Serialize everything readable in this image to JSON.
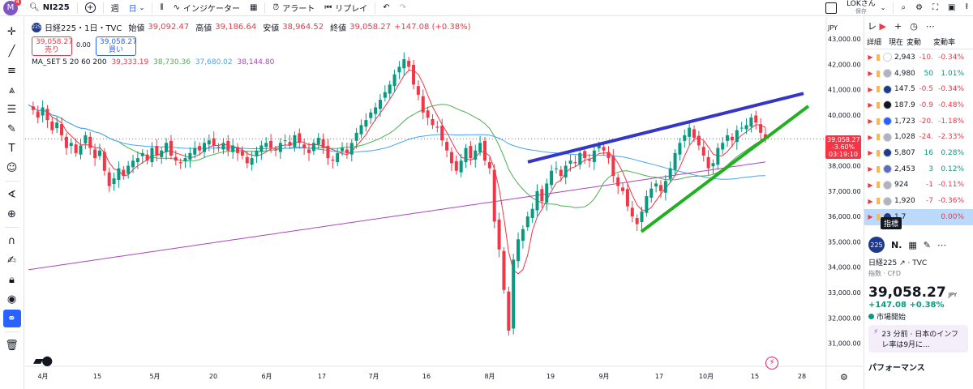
{
  "topbar": {
    "avatar_letter": "M",
    "avatar_badge": "4",
    "symbol": "NI225",
    "timeframe": "週",
    "timeframe_active": "日",
    "indicators_label": "インジケーター",
    "alert_label": "アラート",
    "replay_label": "リプレイ",
    "user_name": "LOKさん",
    "save_label": "保存"
  },
  "legend": {
    "symbol_badge": "225",
    "title": "日経225・1日・TVC",
    "open_label": "始値",
    "open": "39,092.47",
    "high_label": "高値",
    "high": "39,186.64",
    "low_label": "安値",
    "low": "38,964.52",
    "close_label": "終値",
    "close": "39,058.27",
    "change": "+147.08 (+0.38%)",
    "sell_price": "39,058.27",
    "sell_label": "売り",
    "buy_price": "39,058.27",
    "buy_label": "買い",
    "spread": "0.00",
    "ma_label": "MA_SET 5 20 60 200",
    "ma_values": [
      "39,333.19",
      "38,730.36",
      "37,680.02",
      "38,144.80"
    ],
    "ma_colors": [
      "#f23645",
      "#4caf50",
      "#42a5f5",
      "#ab47bc"
    ]
  },
  "chart_data": {
    "type": "candlestick",
    "currency": "JPY",
    "yaxis_ticks": [
      "43,000.00",
      "42,000.00",
      "41,000.00",
      "40,000.00",
      "39,000.00",
      "38,000.00",
      "37,000.00",
      "36,000.00",
      "35,000.00",
      "34,000.00",
      "33,000.00",
      "32,000.00",
      "31,000.00"
    ],
    "xaxis_ticks": [
      "4月",
      "15",
      "5月",
      "20",
      "6月",
      "17",
      "7月",
      "16",
      "8月",
      "19",
      "9月",
      "17",
      "10月",
      "15",
      "28"
    ],
    "last_price_label": "39,058.27",
    "last_change_label": "-3.60%",
    "countdown_label": "03:19:10",
    "colors": {
      "up": "#089981",
      "down": "#f23645",
      "trend_upper": "#3535c8",
      "trend_lower": "#22b022"
    }
  },
  "watchlist": {
    "header_label": "レ",
    "col_detail": "詳細",
    "col_last": "現在",
    "col_chg": "変動",
    "col_pct": "変動率",
    "rows": [
      {
        "last": "2,943",
        "chg": "-10.",
        "pct": "-0.34%",
        "dir": "neg",
        "icon_color": "#ffffff"
      },
      {
        "last": "4,980",
        "chg": "50",
        "pct": "1.01%",
        "dir": "pos",
        "icon_color": "#b0b3bd"
      },
      {
        "last": "147.5",
        "chg": "-0.5",
        "pct": "-0.34%",
        "dir": "neg",
        "icon_color": "#1e3a8a"
      },
      {
        "last": "187.9",
        "chg": "-0.9",
        "pct": "-0.48%",
        "dir": "neg",
        "icon_color": "#131722"
      },
      {
        "last": "1,723",
        "chg": "-20.",
        "pct": "-1.18%",
        "dir": "neg",
        "icon_color": "#2962ff"
      },
      {
        "last": "1,028",
        "chg": "-24.",
        "pct": "-2.33%",
        "dir": "neg",
        "icon_color": "#b0b3bd"
      },
      {
        "last": "5,807",
        "chg": "16",
        "pct": "0.28%",
        "dir": "pos",
        "icon_color": "#1e3a8a"
      },
      {
        "last": "2,453",
        "chg": "3",
        "pct": "0.12%",
        "dir": "pos",
        "icon_color": "#5c6bc0"
      },
      {
        "last": "924",
        "chg": "-1",
        "pct": "-0.11%",
        "dir": "neg",
        "icon_color": "#b0b3bd"
      },
      {
        "last": "1,920",
        "chg": "-7",
        "pct": "-0.36%",
        "dir": "neg",
        "icon_color": "#b0b3bd"
      },
      {
        "last": "1,7",
        "chg": "",
        "pct": "0.00%",
        "dir": "neg",
        "icon_color": "#1e3a8a"
      }
    ]
  },
  "tooltip": "指標",
  "detail": {
    "symbol_badge": "225",
    "symbol_short": "N.",
    "name": "日経225",
    "exchange": "TVC",
    "type": "指数",
    "sub_type": "CFD",
    "price": "39,058.27",
    "currency": "JPY",
    "change": "+147.08",
    "change_pct": "+0.38%",
    "market_status": "市場開始",
    "news": "23 分前 · 日本のインフレ率は9月に...",
    "performance_label": "パフォーマンス"
  }
}
